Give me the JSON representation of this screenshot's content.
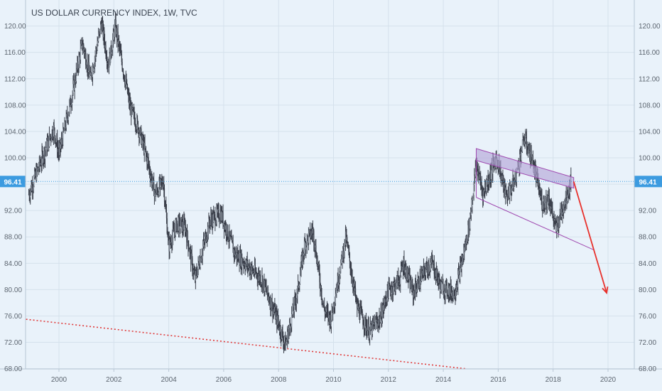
{
  "chart_data": {
    "type": "candlestick",
    "title": "US DOLLAR CURRENCY INDEX, 1W, TVC",
    "xlabel": "",
    "ylabel": "",
    "x_range": [
      1998.8,
      2021.1
    ],
    "ylim": [
      68,
      124
    ],
    "x_ticks": [
      "2000",
      "2002",
      "2004",
      "2006",
      "2008",
      "2010",
      "2012",
      "2014",
      "2016",
      "2018",
      "2020"
    ],
    "y_ticks": [
      "68.00",
      "72.00",
      "76.00",
      "80.00",
      "84.00",
      "88.00",
      "92.00",
      "96.00",
      "100.00",
      "104.00",
      "108.00",
      "112.00",
      "116.00",
      "120.00"
    ],
    "current_price": "96.41",
    "grid": true,
    "colors": {
      "background": "#e9f2fa",
      "grid": "#d5e1ec",
      "candle": "#3a3f4a",
      "price_line": "#3c9be0",
      "price_tag": "#3c9be0",
      "trendline": "#e03a3a",
      "channel": "#a04ab0",
      "channel_fill": "#b6a6d8",
      "arrow": "#e8312c"
    },
    "price_path": [
      [
        1998.9,
        94.5
      ],
      [
        1999.3,
        99.0
      ],
      [
        1999.8,
        104.5
      ],
      [
        2000.0,
        100.5
      ],
      [
        2000.5,
        110.0
      ],
      [
        2000.85,
        117.5
      ],
      [
        2001.15,
        112.0
      ],
      [
        2001.55,
        120.5
      ],
      [
        2001.8,
        114.0
      ],
      [
        2002.05,
        120.0
      ],
      [
        2002.4,
        112.0
      ],
      [
        2002.6,
        107.5
      ],
      [
        2002.9,
        104.5
      ],
      [
        2003.2,
        100.0
      ],
      [
        2003.5,
        94.5
      ],
      [
        2003.8,
        96.5
      ],
      [
        2004.0,
        86.5
      ],
      [
        2004.3,
        90.0
      ],
      [
        2004.6,
        89.5
      ],
      [
        2004.95,
        81.5
      ],
      [
        2005.5,
        90.5
      ],
      [
        2005.9,
        91.5
      ],
      [
        2006.4,
        85.5
      ],
      [
        2006.9,
        83.5
      ],
      [
        2007.4,
        81.5
      ],
      [
        2007.9,
        76.0
      ],
      [
        2008.25,
        71.5
      ],
      [
        2008.7,
        80.0
      ],
      [
        2008.95,
        87.0
      ],
      [
        2009.25,
        89.0
      ],
      [
        2009.65,
        77.0
      ],
      [
        2009.9,
        75.5
      ],
      [
        2010.45,
        88.0
      ],
      [
        2010.85,
        77.5
      ],
      [
        2011.3,
        73.5
      ],
      [
        2011.75,
        76.0
      ],
      [
        2011.95,
        79.5
      ],
      [
        2012.4,
        81.5
      ],
      [
        2012.55,
        84.0
      ],
      [
        2012.9,
        79.5
      ],
      [
        2013.35,
        83.0
      ],
      [
        2013.6,
        84.0
      ],
      [
        2013.9,
        80.5
      ],
      [
        2014.4,
        79.5
      ],
      [
        2014.7,
        84.5
      ],
      [
        2014.95,
        90.0
      ],
      [
        2015.2,
        99.0
      ],
      [
        2015.45,
        94.5
      ],
      [
        2015.75,
        98.0
      ],
      [
        2015.95,
        100.0
      ],
      [
        2016.3,
        94.0
      ],
      [
        2016.6,
        96.5
      ],
      [
        2016.95,
        103.0
      ],
      [
        2017.25,
        99.5
      ],
      [
        2017.6,
        93.0
      ],
      [
        2017.85,
        94.0
      ],
      [
        2018.1,
        89.0
      ],
      [
        2018.35,
        92.5
      ],
      [
        2018.65,
        96.41
      ]
    ],
    "annotations": {
      "long_trendline": [
        [
          1998.8,
          75.5
        ],
        [
          2014.8,
          68.0
        ]
      ],
      "channel_top": [
        [
          2015.2,
          101.4
        ],
        [
          2018.75,
          97.0
        ]
      ],
      "channel_top_lower": [
        [
          2015.2,
          99.6
        ],
        [
          2018.75,
          95.4
        ]
      ],
      "channel_bottom": [
        [
          2015.2,
          94.0
        ],
        [
          2019.5,
          86.0
        ]
      ],
      "forecast_arrow": [
        [
          2018.75,
          96.41
        ],
        [
          2019.45,
          86.5
        ],
        [
          2019.95,
          79.5
        ]
      ]
    }
  }
}
